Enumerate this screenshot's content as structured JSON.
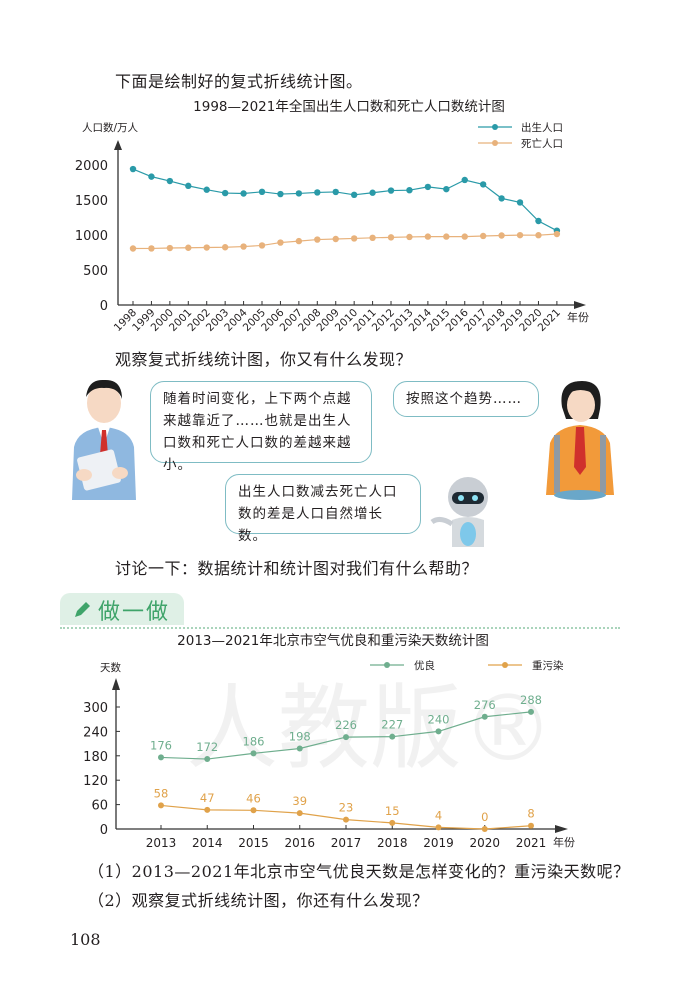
{
  "intro_text": "下面是绘制好的复式折线统计图。",
  "observe_text": "观察复式折线统计图，你又有什么发现？",
  "discuss_text": "讨论一下：数据统计和统计图对我们有什么帮助？",
  "bubbles": {
    "boy": "随着时间变化，上下两个点越来越靠近了……也就是出生人口数和死亡人口数的差越来越小。",
    "girl": "按照这个趋势……",
    "robot": "出生人口数减去死亡人口数的差是人口自然增长数。"
  },
  "section": {
    "label": "做一做",
    "icon": "pencil-icon"
  },
  "questions": [
    "（1）2013—2021年北京市空气优良天数是怎样变化的？重污染天数呢？",
    "（2）观察复式折线统计图，你还有什么发现？"
  ],
  "page_number": "108",
  "watermark": "人教版®",
  "colors": {
    "birth": "#2a9aa8",
    "death": "#e8b27c",
    "good": "#6fae8e",
    "heavy": "#e0a24a"
  },
  "chart_data": [
    {
      "type": "line",
      "title": "1998—2021年全国出生人口数和死亡人口数统计图",
      "xlabel": "年份",
      "ylabel": "人口数/万人",
      "ylim": [
        0,
        2000
      ],
      "yticks": [
        0,
        500,
        1000,
        1500,
        2000
      ],
      "grid": false,
      "legend_position": "top-right",
      "categories": [
        "1998",
        "1999",
        "2000",
        "2001",
        "2002",
        "2003",
        "2004",
        "2005",
        "2006",
        "2007",
        "2008",
        "2009",
        "2010",
        "2011",
        "2012",
        "2013",
        "2014",
        "2015",
        "2016",
        "2017",
        "2018",
        "2019",
        "2020",
        "2021"
      ],
      "series": [
        {
          "name": "出生人口",
          "values": [
            1942,
            1834,
            1771,
            1702,
            1647,
            1599,
            1593,
            1617,
            1585,
            1594,
            1608,
            1615,
            1574,
            1604,
            1635,
            1640,
            1687,
            1655,
            1786,
            1723,
            1523,
            1465,
            1200,
            1062
          ]
        },
        {
          "name": "死亡人口",
          "values": [
            807,
            808,
            814,
            818,
            821,
            825,
            835,
            851,
            892,
            913,
            935,
            943,
            951,
            960,
            966,
            972,
            977,
            977,
            977,
            986,
            993,
            998,
            997,
            1014
          ]
        }
      ]
    },
    {
      "type": "line",
      "title": "2013—2021年北京市空气优良和重污染天数统计图",
      "xlabel": "年份",
      "ylabel": "天数",
      "ylim": [
        0,
        300
      ],
      "yticks": [
        0,
        60,
        120,
        180,
        240,
        300
      ],
      "grid": false,
      "legend_position": "top-right",
      "categories": [
        "2013",
        "2014",
        "2015",
        "2016",
        "2017",
        "2018",
        "2019",
        "2020",
        "2021"
      ],
      "series": [
        {
          "name": "优良",
          "values": [
            176,
            172,
            186,
            198,
            226,
            227,
            240,
            276,
            288
          ]
        },
        {
          "name": "重污染",
          "values": [
            58,
            47,
            46,
            39,
            23,
            15,
            4,
            0,
            8
          ]
        }
      ]
    }
  ]
}
